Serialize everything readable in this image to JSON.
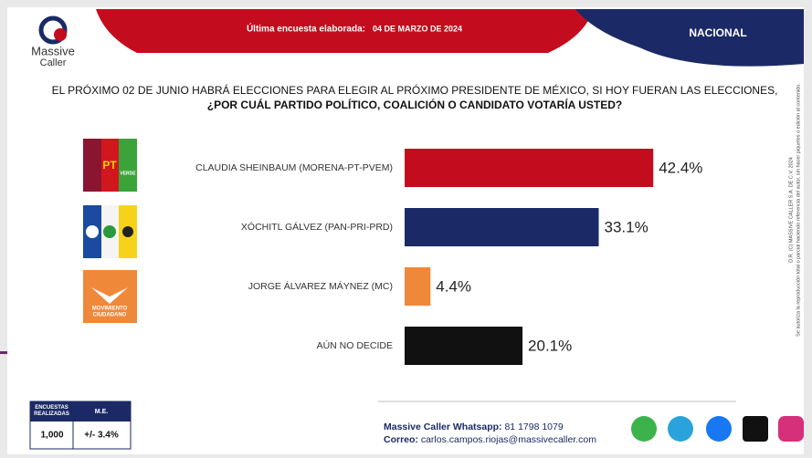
{
  "header": {
    "brand": [
      "Massive",
      "Caller"
    ],
    "survey_label": "Última encuesta elaborada:",
    "survey_date": "04 DE MARZO DE 2024",
    "scope": "NACIONAL"
  },
  "question": [
    "EL PRÓXIMO 02 DE JUNIO HABRÁ ELECCIONES PARA ELEGIR AL PRÓXIMO PRESIDENTE DE MÉXICO, SI HOY FUERAN LAS ELECCIONES,",
    "¿POR CUÁL PARTIDO POLÍTICO, COALICIÓN O CANDIDATO VOTARÍA USTED?"
  ],
  "logos": {
    "pt": "PT",
    "verde": "VERDE",
    "mc": [
      "MOVIMIENTO",
      "CIUDADANO"
    ]
  },
  "chart_data": {
    "type": "hbar",
    "categories": [
      "CLAUDIA SHEINBAUM (MORENA-PT-PVEM)",
      "XÓCHITL GÁLVEZ (PAN-PRI-PRD)",
      "JORGE ÁLVAREZ MÁYNEZ (MC)",
      "AÚN NO DECIDE"
    ],
    "values": [
      42.4,
      33.1,
      4.4,
      20.1
    ],
    "value_labels": [
      "42.4%",
      "33.1%",
      "4.4%",
      "20.1%"
    ],
    "colors": [
      "#c40c1f",
      "#1b2a66",
      "#f0883a",
      "#111111"
    ]
  },
  "stats": {
    "headers": [
      "ENCUESTAS REALIZADAS",
      "M.E."
    ],
    "values": [
      "1,000",
      "+/- 3.4%"
    ]
  },
  "footer": {
    "whatsapp_label": "Massive Caller Whatsapp:",
    "whatsapp": "81 1798 1079",
    "email_label": "Correo:",
    "email": "carlos.campos.riojas@massivecaller.com"
  },
  "side_note": [
    "D.R. (C) MASSIVE CALLER S.A. DE C.V. 2024",
    "Se autoriza la reproducción total o parcial haciendo referencia del autor, sin hacer piquetes o edición al contenido."
  ]
}
